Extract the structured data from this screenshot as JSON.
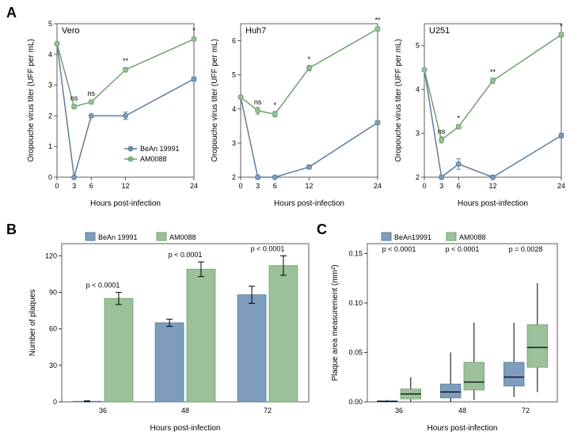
{
  "colors": {
    "series1": "#7e9dbd",
    "series2": "#9cc09a",
    "series1_stroke": "#5d7d9d",
    "series2_stroke": "#6fa06d",
    "axis": "#333333",
    "grid": "#ffffff",
    "bg": "#ffffff",
    "text": "#000000"
  },
  "series_names": {
    "s1": "BeAn 19991",
    "s2": "AM0088"
  },
  "panelA": {
    "label": "A",
    "x_label": "Hours post-infection",
    "y_label": "Oropouche virus titer (UFF per mL)",
    "x_ticks": [
      0,
      3,
      6,
      12,
      24
    ],
    "charts": [
      {
        "title": "Vero",
        "ylim": [
          0,
          5
        ],
        "yticks": [
          0,
          1,
          2,
          3,
          4,
          5
        ],
        "s1": [
          4.35,
          0.0,
          2.0,
          2.0,
          3.2
        ],
        "s2": [
          4.35,
          2.3,
          2.45,
          3.5,
          4.5
        ],
        "err1": [
          0,
          0,
          0,
          0.12,
          0.06
        ],
        "err2": [
          0,
          0.07,
          0.06,
          0.07,
          0.05
        ],
        "sig": [
          "",
          "ns",
          "ns",
          "**",
          "*"
        ]
      },
      {
        "title": "Huh7",
        "ylim": [
          2,
          6.5
        ],
        "yticks": [
          2,
          3,
          4,
          5,
          6
        ],
        "s1": [
          4.35,
          2.0,
          2.0,
          2.3,
          3.6
        ],
        "s2": [
          4.35,
          3.95,
          3.85,
          5.2,
          6.35
        ],
        "err1": [
          0,
          0.05,
          0.04,
          0.06,
          0.05
        ],
        "err2": [
          0,
          0.1,
          0.08,
          0.08,
          0.06
        ],
        "sig": [
          "",
          "ns",
          "*",
          "*",
          "**"
        ]
      },
      {
        "title": "U251",
        "ylim": [
          2,
          5.5
        ],
        "yticks": [
          2,
          3,
          4,
          5
        ],
        "s1": [
          4.45,
          2.0,
          2.3,
          2.0,
          2.95
        ],
        "s2": [
          4.45,
          2.85,
          3.15,
          4.2,
          5.25
        ],
        "err1": [
          0,
          0.04,
          0.12,
          0.04,
          0.05
        ],
        "err2": [
          0,
          0.07,
          0.05,
          0.06,
          0.05
        ],
        "sig": [
          "",
          "ns",
          "*",
          "**",
          "*"
        ]
      }
    ]
  },
  "panelB": {
    "label": "B",
    "x_label": "Hours post-infection",
    "y_label": "Number of plaques",
    "x_cats": [
      "36",
      "48",
      "72"
    ],
    "ylim": [
      0,
      130
    ],
    "yticks": [
      0,
      30,
      60,
      90,
      120
    ],
    "s1": [
      0.5,
      65,
      88
    ],
    "s2": [
      85,
      109,
      112
    ],
    "err1": [
      0.3,
      3,
      7
    ],
    "err2": [
      5,
      6,
      8
    ],
    "pvals": [
      "p < 0.0001",
      "p < 0.0001",
      "p < 0.0001"
    ],
    "bar_width": 0.38
  },
  "panelC": {
    "label": "C",
    "x_label": "Hours post-infection",
    "y_label": "Plaque area measurement (mm²)",
    "x_cats": [
      "36",
      "48",
      "72"
    ],
    "ylim": [
      0,
      0.16
    ],
    "yticks": [
      0.0,
      0.05,
      0.1,
      0.15
    ],
    "boxes_s1": [
      {
        "min": 0.0,
        "q1": 0.0,
        "med": 0.0005,
        "q3": 0.001,
        "max": 0.002
      },
      {
        "min": 0.0,
        "q1": 0.004,
        "med": 0.01,
        "q3": 0.018,
        "max": 0.05
      },
      {
        "min": 0.005,
        "q1": 0.016,
        "med": 0.025,
        "q3": 0.04,
        "max": 0.08
      }
    ],
    "boxes_s2": [
      {
        "min": 0.0,
        "q1": 0.003,
        "med": 0.008,
        "q3": 0.013,
        "max": 0.025
      },
      {
        "min": 0.002,
        "q1": 0.012,
        "med": 0.02,
        "q3": 0.04,
        "max": 0.08
      },
      {
        "min": 0.01,
        "q1": 0.035,
        "med": 0.055,
        "q3": 0.078,
        "max": 0.12
      }
    ],
    "pvals": [
      "p < 0.0001",
      "p < 0.0001",
      "p = 0.0028"
    ],
    "box_width": 0.32
  }
}
